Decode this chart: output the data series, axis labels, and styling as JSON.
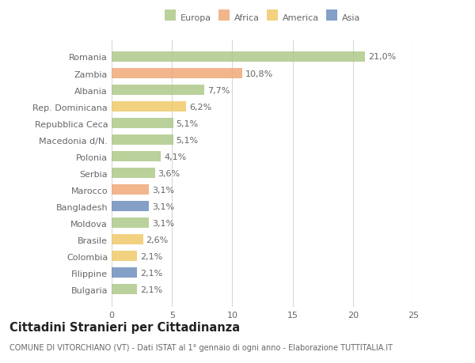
{
  "categories": [
    "Bulgaria",
    "Filippine",
    "Colombia",
    "Brasile",
    "Moldova",
    "Bangladesh",
    "Marocco",
    "Serbia",
    "Polonia",
    "Macedonia d/N.",
    "Repubblica Ceca",
    "Rep. Dominicana",
    "Albania",
    "Zambia",
    "Romania"
  ],
  "values": [
    2.1,
    2.1,
    2.1,
    2.6,
    3.1,
    3.1,
    3.1,
    3.6,
    4.1,
    5.1,
    5.1,
    6.2,
    7.7,
    10.8,
    21.0
  ],
  "labels": [
    "2,1%",
    "2,1%",
    "2,1%",
    "2,6%",
    "3,1%",
    "3,1%",
    "3,1%",
    "3,6%",
    "4,1%",
    "5,1%",
    "5,1%",
    "6,2%",
    "7,7%",
    "10,8%",
    "21,0%"
  ],
  "colors": [
    "#aec98a",
    "#6e8fbe",
    "#f0c96a",
    "#f0c96a",
    "#aec98a",
    "#6e8fbe",
    "#f0a878",
    "#aec98a",
    "#aec98a",
    "#aec98a",
    "#aec98a",
    "#f0c96a",
    "#aec98a",
    "#f0a878",
    "#aec98a"
  ],
  "legend_labels": [
    "Europa",
    "Africa",
    "America",
    "Asia"
  ],
  "legend_colors": [
    "#aec98a",
    "#f0a878",
    "#f0c96a",
    "#6e8fbe"
  ],
  "title": "Cittadini Stranieri per Cittadinanza",
  "subtitle": "COMUNE DI VITORCHIANO (VT) - Dati ISTAT al 1° gennaio di ogni anno - Elaborazione TUTTITALIA.IT",
  "xlim": [
    0,
    25
  ],
  "xticks": [
    0,
    5,
    10,
    15,
    20,
    25
  ],
  "background_color": "#ffffff",
  "grid_color": "#d8d8d8",
  "bar_height": 0.62,
  "label_fontsize": 8.0,
  "tick_fontsize": 8.0,
  "title_fontsize": 10.5,
  "subtitle_fontsize": 7.0
}
